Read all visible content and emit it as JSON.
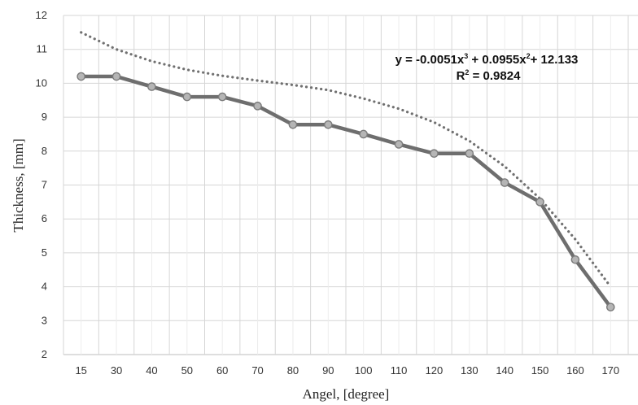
{
  "chart_data": {
    "type": "line",
    "title": "",
    "xlabel": "Angel, [degree]",
    "ylabel": "Thickness, [mm]",
    "ylim": [
      2,
      12
    ],
    "yticks": [
      "2",
      "3",
      "4",
      "5",
      "6",
      "7",
      "8",
      "9",
      "10",
      "11",
      "12"
    ],
    "categories": [
      "15",
      "30",
      "40",
      "50",
      "60",
      "70",
      "80",
      "90",
      "100",
      "110",
      "120",
      "130",
      "140",
      "150",
      "160",
      "170"
    ],
    "grid": true,
    "series": [
      {
        "style": "solid-markers",
        "color": "#6e6e6e",
        "values": [
          10.2,
          10.2,
          9.9,
          9.6,
          9.6,
          9.33,
          8.78,
          8.78,
          8.5,
          8.2,
          7.93,
          7.93,
          7.07,
          6.5,
          4.8,
          3.4
        ]
      },
      {
        "style": "dotted-trendline",
        "color": "#707070",
        "values": [
          11.5,
          11.0,
          10.65,
          10.4,
          10.22,
          10.08,
          9.95,
          9.8,
          9.55,
          9.25,
          8.85,
          8.3,
          7.55,
          6.6,
          5.4,
          4.0
        ]
      }
    ],
    "annotation": {
      "equation_parts": [
        "y = -0.0051x",
        "3",
        " + 0.0955x",
        "2",
        "+ 12.133"
      ],
      "r2_parts": [
        "R",
        "2",
        " = 0.9824"
      ]
    }
  }
}
